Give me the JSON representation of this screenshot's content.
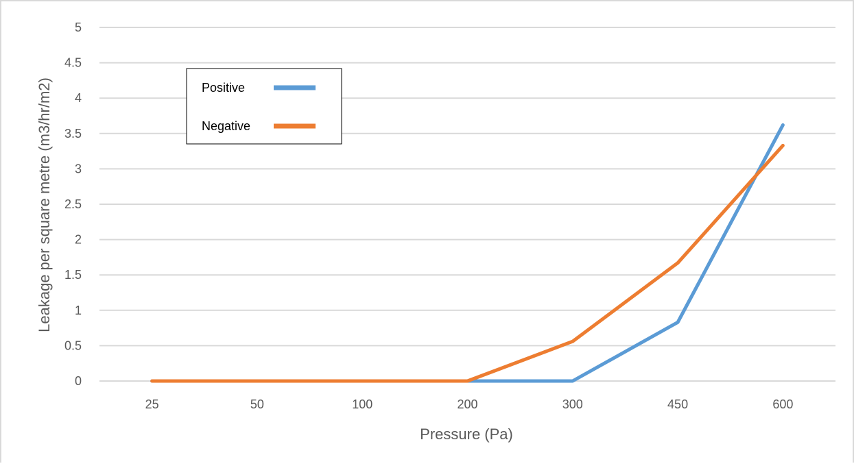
{
  "chart_data": {
    "type": "line",
    "title": "",
    "xlabel": "Pressure (Pa)",
    "ylabel": "Leakage per square metre (m3/hr/m2)",
    "categories": [
      "25",
      "50",
      "100",
      "200",
      "300",
      "450",
      "600"
    ],
    "ylim": [
      0,
      5
    ],
    "yticks": [
      "0",
      "0.5",
      "1",
      "1.5",
      "2",
      "2.5",
      "3",
      "3.5",
      "4",
      "4.5",
      "5"
    ],
    "grid": true,
    "legend_position": "top-left",
    "series": [
      {
        "name": "Positive",
        "color": "#5b9bd5",
        "values": [
          0,
          0,
          0,
          0,
          0,
          0.83,
          3.62
        ]
      },
      {
        "name": "Negative",
        "color": "#ed7d31",
        "values": [
          0,
          0,
          0,
          0,
          0.56,
          1.67,
          3.33
        ]
      }
    ]
  }
}
